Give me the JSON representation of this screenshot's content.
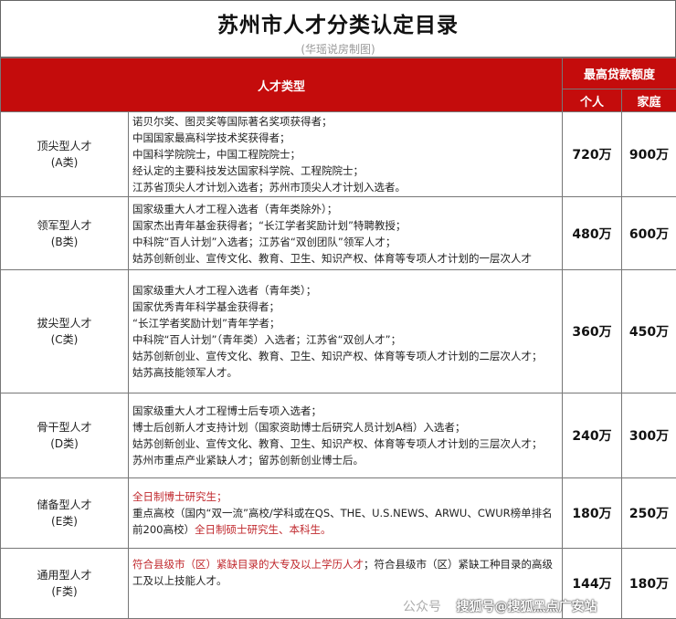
{
  "title": "苏州市人才分类认定目录",
  "subtitle": "(华瑶说房制图)",
  "header": {
    "type": "人才类型",
    "max_loan": "最高贷款额度",
    "individual": "个人",
    "family": "家庭"
  },
  "rows": [
    {
      "name": "顶尖型人才",
      "cls": "(A类)",
      "lines": [
        "诺贝尔奖、图灵奖等国际著名奖项获得者；",
        "中国国家最高科学技术奖获得者；",
        "中国科学院院士，中国工程院院士；",
        "经认定的主要科技发达国家科学院、工程院院士；",
        "江苏省顶尖人才计划入选者；苏州市顶尖人才计划入选者。"
      ],
      "individual": "720万",
      "family": "900万"
    },
    {
      "name": "领军型人才",
      "cls": "(B类)",
      "lines": [
        "国家级重大人才工程入选者（青年类除外）；",
        "国家杰出青年基金获得者；“长江学者奖励计划”特聘教授；",
        "中科院“百人计划”入选者；江苏省“双创团队”领军人才；",
        "姑苏创新创业、宣传文化、教育、卫生、知识产权、体育等专项人才计划的一层次人才"
      ],
      "individual": "480万",
      "family": "600万"
    },
    {
      "name": "拔尖型人才",
      "cls": "(C类)",
      "lines": [
        "国家级重大人才工程入选者（青年类）；",
        "国家优秀青年科学基金获得者；",
        "“长江学者奖励计划”青年学者；",
        "中科院“百人计划”（青年类）入选者；江苏省“双创人才”；",
        "姑苏创新创业、宣传文化、教育、卫生、知识产权、体育等专项人才计划的二层次人才；",
        "姑苏高技能领军人才。"
      ],
      "individual": "360万",
      "family": "450万"
    },
    {
      "name": "骨干型人才",
      "cls": "(D类)",
      "lines": [
        "国家级重大人才工程博士后专项入选者；",
        "博士后创新人才支持计划（国家资助博士后研究人员计划A档）入选者；",
        "姑苏创新创业、宣传文化、教育、卫生、知识产权、体育等专项人才计划的三层次人才；",
        "苏州市重点产业紧缺人才；留苏创新创业博士后。"
      ],
      "individual": "240万",
      "family": "300万"
    },
    {
      "name": "储备型人才",
      "cls": "(E类)",
      "e_red1": "全日制博士研究生；",
      "e_line2": "重点高校（国内“双一流”高校/学科或在QS、THE、U.S.NEWS、ARWU、CWUR榜单排名前200高校）",
      "e_red2": "全日制硕士研究生、本科生。",
      "individual": "180万",
      "family": "250万"
    },
    {
      "name": "通用型人才",
      "cls": "(F类)",
      "f_red": "符合县级市（区）紧缺目录的大专及以上学历人才",
      "f_rest": "；符合县级市（区）紧缺工种目录的高级工及以上技能人才。",
      "individual": "144万",
      "family": "180万"
    }
  ],
  "watermark": "搜狐号@搜狐黑点广安站",
  "watermark2": "公众号"
}
